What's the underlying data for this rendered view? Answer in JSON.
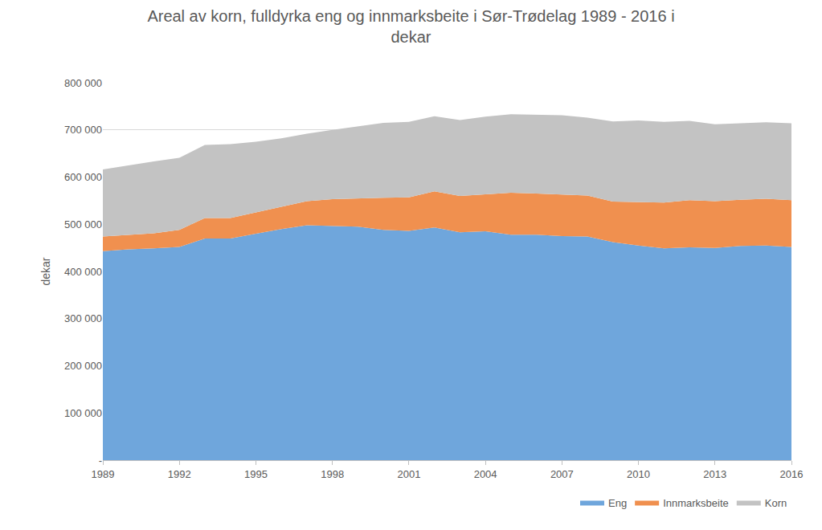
{
  "chart_data": {
    "type": "area",
    "stacked": true,
    "title": "Areal av korn, fulldyrka eng og innmarksbeite i Sør-Trødelag 1989 - 2016 i\ndekar",
    "y_label": "dekar",
    "x": [
      1989,
      1990,
      1991,
      1992,
      1993,
      1994,
      1995,
      1996,
      1997,
      1998,
      1999,
      2000,
      2001,
      2002,
      2003,
      2004,
      2005,
      2006,
      2007,
      2008,
      2009,
      2010,
      2011,
      2012,
      2013,
      2014,
      2015,
      2016
    ],
    "series": [
      {
        "name": "Eng",
        "color": "#6fa6dc",
        "values": [
          443000,
          447000,
          449000,
          452000,
          470000,
          470000,
          480000,
          490000,
          498000,
          497000,
          495000,
          488000,
          486000,
          493000,
          483000,
          485000,
          478000,
          478000,
          475000,
          474000,
          462000,
          455000,
          449000,
          451000,
          450000,
          454000,
          455000,
          452000
        ]
      },
      {
        "name": "Innmarksbeite",
        "color": "#f0904f",
        "values": [
          31000,
          31000,
          32000,
          36000,
          43000,
          43000,
          45000,
          47000,
          51000,
          56000,
          60000,
          68000,
          71000,
          77000,
          77000,
          79000,
          89000,
          87000,
          88000,
          87000,
          86000,
          92000,
          97000,
          100000,
          99000,
          98000,
          99000,
          99000
        ]
      },
      {
        "name": "Korn",
        "color": "#c3c3c3",
        "values": [
          142000,
          147000,
          152000,
          153000,
          155000,
          157000,
          150000,
          145000,
          143000,
          147000,
          152000,
          159000,
          160000,
          159000,
          161000,
          164000,
          166000,
          167000,
          168000,
          165000,
          170000,
          173000,
          171000,
          168000,
          163000,
          162000,
          162000,
          163000
        ]
      }
    ],
    "xlim": [
      1989,
      2016
    ],
    "xticks": [
      1989,
      1992,
      1995,
      1998,
      2001,
      2004,
      2007,
      2010,
      2013,
      2016
    ],
    "ylim": [
      0,
      800000
    ],
    "yticks": [
      {
        "value": 0,
        "label": "-"
      },
      {
        "value": 100000,
        "label": "100 000"
      },
      {
        "value": 200000,
        "label": "200 000"
      },
      {
        "value": 300000,
        "label": "300 000"
      },
      {
        "value": 400000,
        "label": "400 000"
      },
      {
        "value": 500000,
        "label": "500 000"
      },
      {
        "value": 600000,
        "label": "600 000"
      },
      {
        "value": 700000,
        "label": "700 000"
      },
      {
        "value": 800000,
        "label": "800 000"
      }
    ],
    "grid": true,
    "legend": "bottom-right"
  }
}
